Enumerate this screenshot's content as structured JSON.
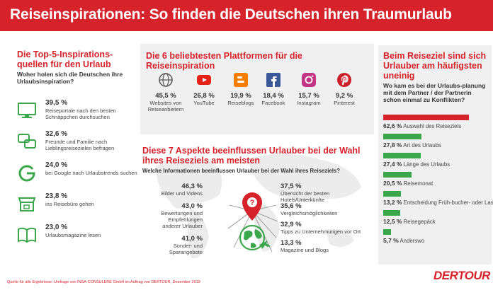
{
  "title": "Reiseinspirationen: So finden die Deutschen ihren Traumurlaub",
  "footer": "Quelle für alle Ergebnisse: Umfrage von INSA-CONSULERE GmbH im Auftrag von DERTOUR, Dezember 2019",
  "logo": "DERTOUR",
  "colors": {
    "accent": "#d6222b",
    "green": "#3aa84a",
    "grey": "#555555"
  },
  "sources": {
    "title": "Die Top-5-Inspirations-quellen für den Urlaub",
    "subtitle": "Woher holen sich die Deutschen ihre Urlaubsinspiration?",
    "items": [
      {
        "value": "39,5 %",
        "label": "Reiseportale nach den besten Schnäppchen durchsuchen",
        "icon": "monitor-icon"
      },
      {
        "value": "32,6 %",
        "label": "Freunde und Familie nach Lieblingsreisezielen befragen",
        "icon": "speech-bubbles-icon"
      },
      {
        "value": "24,0 %",
        "label": "bei Google nach Urlaubstrends suchen",
        "icon": "google-icon"
      },
      {
        "value": "23,8 %",
        "label": "ins Reisebüro gehen",
        "icon": "shop-icon"
      },
      {
        "value": "23,0 %",
        "label": "Urlaubsmagazine lesen",
        "icon": "book-icon"
      }
    ]
  },
  "platforms": {
    "title": "Die 6 beliebtesten Plattformen für die Reiseinspiration",
    "items": [
      {
        "value": "45,5 %",
        "label": "Websites von Reiseanbietern",
        "icon": "www-icon"
      },
      {
        "value": "26,8 %",
        "label": "YouTube",
        "icon": "youtube-icon"
      },
      {
        "value": "19,9 %",
        "label": "Reiseblogs",
        "icon": "blogger-icon"
      },
      {
        "value": "18,4 %",
        "label": "Facebook",
        "icon": "facebook-icon"
      },
      {
        "value": "15,7 %",
        "label": "Instagram",
        "icon": "instagram-icon"
      },
      {
        "value": "9,2 %",
        "label": "Pinterest",
        "icon": "pinterest-icon"
      }
    ]
  },
  "aspects": {
    "title": "Diese 7 Aspekte beeinflussen Urlauber bei der Wahl ihres Reiseziels am meisten",
    "subtitle": "Welche Informationen beeinflussen Urlauber bei der Wahl ihres Reiseziels?",
    "left": [
      {
        "value": "46,3 %",
        "label": "Bilder und Videos"
      },
      {
        "value": "43,0 %",
        "label": "Bewertungen und Empfehlungen anderer Urlauber"
      },
      {
        "value": "41,0 %",
        "label": "Sonder- und Sparangebote"
      }
    ],
    "right": [
      {
        "value": "37,5 %",
        "label": "Übersicht der besten Hotels/Unterkünfte"
      },
      {
        "value": "35,6 %",
        "label": "Vergleichsmöglichkeiten"
      },
      {
        "value": "32,9 %",
        "label": "Tipps zu Unternehmungen vor Ort"
      },
      {
        "value": "13,3 %",
        "label": "Magazine und Blogs"
      }
    ]
  },
  "conflicts": {
    "title": "Beim Reiseziel sind sich Urlauber am häufigsten uneinig",
    "subtitle": "Wo kam es bei der Urlaubs-planung mit dem Partner / der Partnerin schon einmal zu Konflikten?"
  },
  "chart_data": {
    "type": "bar",
    "categories": [
      "Auswahl des Reiseziels",
      "Art des Urlaubs",
      "Länge des Urlaubs",
      "Reisemonat",
      "Entscheidung Früh-bucher- oder Last-Minute",
      "Reisegepäck",
      "Anderswo"
    ],
    "values": [
      62.6,
      27.8,
      27.4,
      20.5,
      13.2,
      12.5,
      5.7
    ],
    "value_labels": [
      "62,6 %",
      "27,8 %",
      "27,4 %",
      "20,5 %",
      "13,2 %",
      "12,5 %",
      "5,7 %"
    ],
    "bar_colors": [
      "#d6222b",
      "#3aa84a",
      "#3aa84a",
      "#3aa84a",
      "#3aa84a",
      "#3aa84a",
      "#3aa84a"
    ],
    "xlim": [
      0,
      70
    ],
    "grid": false
  }
}
